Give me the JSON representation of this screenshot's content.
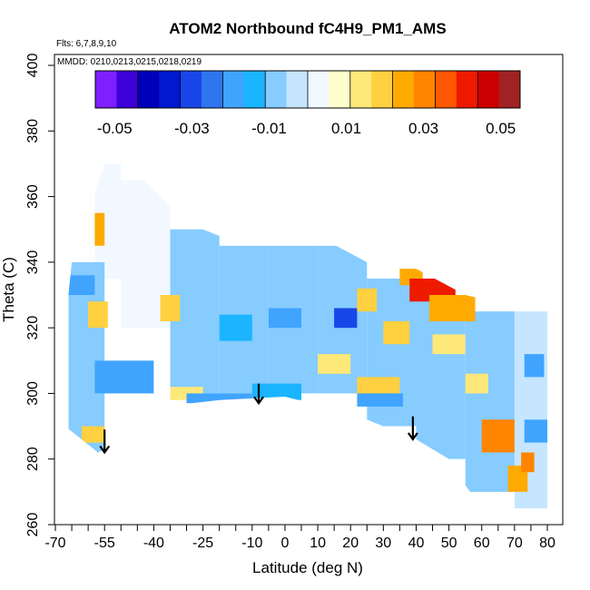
{
  "chart_data": {
    "type": "heatmap",
    "title": "ATOM2 Northbound fC4H9_PM1_AMS",
    "annotations": {
      "flights": "Flts: 6,7,8,9,10",
      "dates": "MMDD: 0210,0213,0215,0218,0219"
    },
    "xlabel": "Latitude (deg N)",
    "ylabel": "Theta (C)",
    "xlim": [
      -70,
      80
    ],
    "ylim": [
      260,
      400
    ],
    "x_ticks": [
      -70,
      -55,
      -40,
      -25,
      -10,
      0,
      10,
      20,
      30,
      40,
      50,
      60,
      70,
      80
    ],
    "x_tick_labels": [
      "-70",
      "-55",
      "-40",
      "-25",
      "-10",
      "0",
      "10",
      "20",
      "30",
      "40",
      "50",
      "60",
      "70",
      "80"
    ],
    "x_minor_ticks": [
      -65,
      -60,
      -50,
      -45,
      -35,
      -30,
      -20,
      -15,
      -5,
      5,
      15,
      25,
      35,
      45,
      55,
      65,
      75
    ],
    "y_ticks": [
      260,
      280,
      300,
      320,
      340,
      360,
      380,
      400
    ],
    "y_tick_labels": [
      "260",
      "280",
      "300",
      "320",
      "340",
      "360",
      "380",
      "400"
    ],
    "colorbar": {
      "range": [
        -0.055,
        0.055
      ],
      "ticks": [
        -0.05,
        -0.03,
        -0.01,
        0.01,
        0.03,
        0.05
      ],
      "tick_labels": [
        "-0.05",
        "-0.03",
        "-0.01",
        "0.01",
        "0.03",
        "0.05"
      ],
      "colors": [
        "#7f1fff",
        "#3d00d8",
        "#0000b8",
        "#0018d0",
        "#1846e8",
        "#2e75f0",
        "#40a4ff",
        "#1ab4ff",
        "#86ccff",
        "#c6e6ff",
        "#f2f8ff",
        "#ffffce",
        "#ffe87a",
        "#ffd040",
        "#ffaa00",
        "#ff8400",
        "#ff5800",
        "#ee1a00",
        "#cc0000",
        "#a02222"
      ]
    },
    "domain_outline": [
      [
        -57,
        282
      ],
      [
        -55,
        283
      ],
      [
        -37,
        296
      ],
      [
        -20,
        298
      ],
      [
        0,
        299
      ],
      [
        20,
        294
      ],
      [
        40,
        286
      ],
      [
        50,
        280
      ],
      [
        55,
        272
      ],
      [
        62,
        262
      ],
      [
        80,
        262
      ],
      [
        80,
        325
      ],
      [
        72,
        326
      ],
      [
        55,
        330
      ],
      [
        40,
        338
      ],
      [
        25,
        340
      ],
      [
        10,
        348
      ],
      [
        -5,
        348
      ],
      [
        -20,
        348
      ],
      [
        -30,
        352
      ],
      [
        -45,
        367
      ],
      [
        -50,
        370
      ],
      [
        -55,
        370
      ],
      [
        -60,
        355
      ],
      [
        -65,
        340
      ],
      [
        -67,
        320
      ],
      [
        -68,
        305
      ],
      [
        -67,
        290
      ]
    ],
    "patches": [
      {
        "lat": [
          -58,
          -50
        ],
        "theta": [
          335,
          370
        ],
        "value": 0.002
      },
      {
        "lat": [
          -50,
          -35
        ],
        "theta": [
          320,
          365
        ],
        "value": 0.004
      },
      {
        "lat": [
          -35,
          -20
        ],
        "theta": [
          300,
          350
        ],
        "value": -0.006
      },
      {
        "lat": [
          -20,
          -5
        ],
        "theta": [
          300,
          345
        ],
        "value": -0.008
      },
      {
        "lat": [
          -5,
          10
        ],
        "theta": [
          300,
          345
        ],
        "value": -0.006
      },
      {
        "lat": [
          10,
          25
        ],
        "theta": [
          300,
          345
        ],
        "value": -0.008
      },
      {
        "lat": [
          25,
          40
        ],
        "theta": [
          290,
          335
        ],
        "value": -0.007
      },
      {
        "lat": [
          40,
          55
        ],
        "theta": [
          280,
          330
        ],
        "value": -0.006
      },
      {
        "lat": [
          55,
          70
        ],
        "theta": [
          270,
          325
        ],
        "value": -0.007
      },
      {
        "lat": [
          70,
          80
        ],
        "theta": [
          265,
          325
        ],
        "value": -0.005
      },
      {
        "lat": [
          -66,
          -55
        ],
        "theta": [
          280,
          340
        ],
        "value": -0.006
      },
      {
        "lat": [
          -58,
          -55
        ],
        "theta": [
          345,
          355
        ],
        "value": 0.025
      },
      {
        "lat": [
          -60,
          -54
        ],
        "theta": [
          320,
          328
        ],
        "value": 0.02
      },
      {
        "lat": [
          -66,
          -58
        ],
        "theta": [
          330,
          336
        ],
        "value": -0.02
      },
      {
        "lat": [
          -58,
          -40
        ],
        "theta": [
          300,
          310
        ],
        "value": -0.022
      },
      {
        "lat": [
          -62,
          -55
        ],
        "theta": [
          285,
          290
        ],
        "value": 0.02
      },
      {
        "lat": [
          -38,
          -32
        ],
        "theta": [
          322,
          330
        ],
        "value": 0.02
      },
      {
        "lat": [
          -35,
          -25
        ],
        "theta": [
          298,
          302
        ],
        "value": 0.012
      },
      {
        "lat": [
          -30,
          -10
        ],
        "theta": [
          297,
          300
        ],
        "value": -0.02
      },
      {
        "lat": [
          -20,
          -10
        ],
        "theta": [
          316,
          324
        ],
        "value": -0.012
      },
      {
        "lat": [
          -5,
          5
        ],
        "theta": [
          320,
          326
        ],
        "value": -0.018
      },
      {
        "lat": [
          15,
          22
        ],
        "theta": [
          320,
          326
        ],
        "value": -0.03
      },
      {
        "lat": [
          22,
          28
        ],
        "theta": [
          325,
          332
        ],
        "value": 0.018
      },
      {
        "lat": [
          35,
          42
        ],
        "theta": [
          333,
          338
        ],
        "value": 0.025
      },
      {
        "lat": [
          38,
          52
        ],
        "theta": [
          328,
          335
        ],
        "value": 0.04
      },
      {
        "lat": [
          44,
          58
        ],
        "theta": [
          322,
          330
        ],
        "value": 0.022
      },
      {
        "lat": [
          22,
          35
        ],
        "theta": [
          300,
          305
        ],
        "value": 0.02
      },
      {
        "lat": [
          22,
          36
        ],
        "theta": [
          296,
          300
        ],
        "value": -0.02
      },
      {
        "lat": [
          30,
          38
        ],
        "theta": [
          315,
          322
        ],
        "value": 0.018
      },
      {
        "lat": [
          -10,
          5
        ],
        "theta": [
          298,
          303
        ],
        "value": -0.012
      },
      {
        "lat": [
          10,
          20
        ],
        "theta": [
          306,
          312
        ],
        "value": 0.016
      },
      {
        "lat": [
          45,
          55
        ],
        "theta": [
          312,
          318
        ],
        "value": 0.014
      },
      {
        "lat": [
          60,
          70
        ],
        "theta": [
          282,
          292
        ],
        "value": 0.03
      },
      {
        "lat": [
          68,
          74
        ],
        "theta": [
          270,
          278
        ],
        "value": 0.025
      },
      {
        "lat": [
          72,
          76
        ],
        "theta": [
          276,
          282
        ],
        "value": 0.028
      },
      {
        "lat": [
          73,
          80
        ],
        "theta": [
          285,
          292
        ],
        "value": -0.02
      },
      {
        "lat": [
          73,
          79
        ],
        "theta": [
          305,
          312
        ],
        "value": -0.022
      },
      {
        "lat": [
          55,
          62
        ],
        "theta": [
          300,
          306
        ],
        "value": 0.012
      }
    ],
    "arrows": [
      {
        "lat": -55,
        "theta_start": 289,
        "theta_end": 282
      },
      {
        "lat": -8,
        "theta_start": 303,
        "theta_end": 297
      },
      {
        "lat": 39,
        "theta_start": 293,
        "theta_end": 286
      }
    ]
  }
}
